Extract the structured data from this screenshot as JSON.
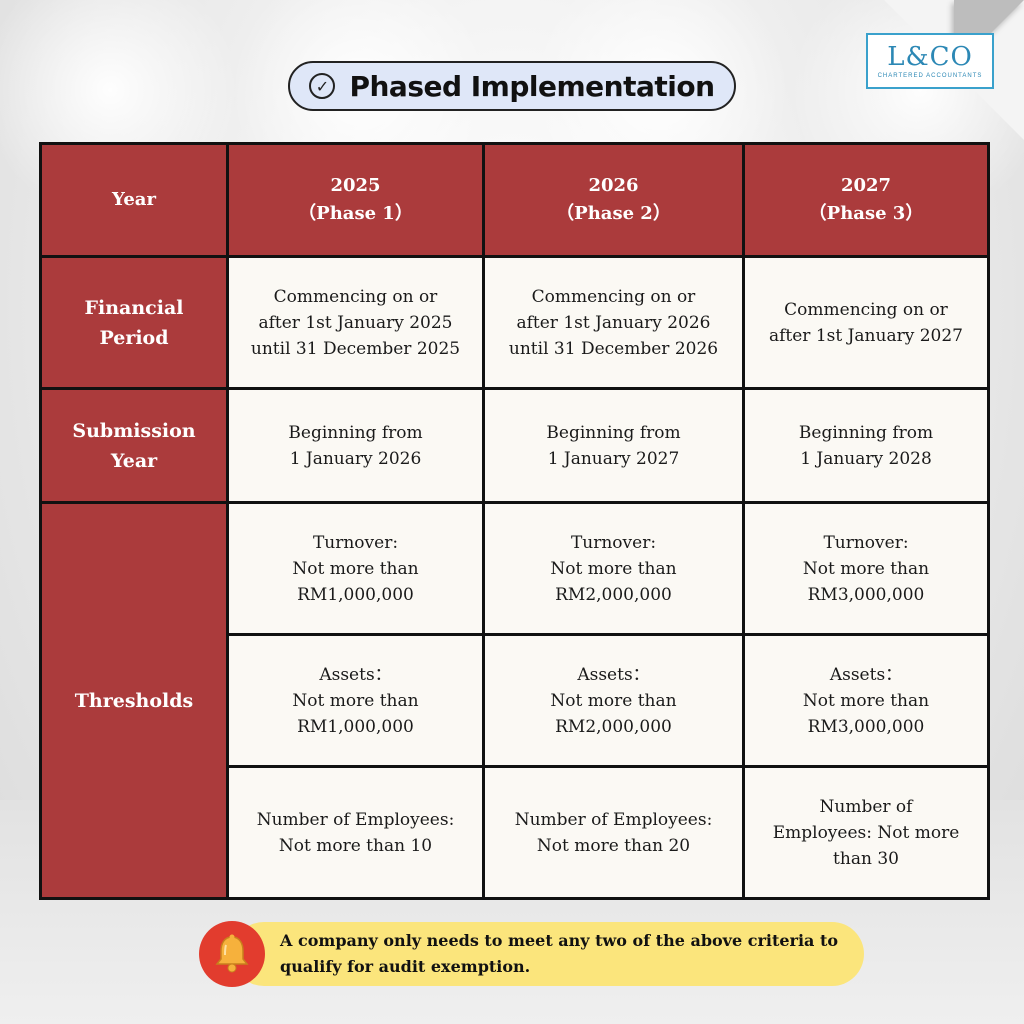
{
  "title": "Phased Implementation",
  "logo": {
    "mark": "L&CO",
    "subtitle": "CHARTERED ACCOUNTANTS"
  },
  "table": {
    "header": {
      "label": "Year",
      "columns": [
        {
          "year": "2025",
          "phase": "（Phase 1）"
        },
        {
          "year": "2026",
          "phase": "（Phase 2）"
        },
        {
          "year": "2027",
          "phase": "（Phase 3）"
        }
      ]
    },
    "financial_period": {
      "label": [
        "Financial",
        "Period"
      ],
      "cells": [
        [
          "Commencing on or",
          "after 1st January 2025",
          "until 31 December 2025"
        ],
        [
          "Commencing on or",
          "after 1st January 2026",
          "until 31 December 2026"
        ],
        [
          "Commencing on or",
          "after 1st January 2027"
        ]
      ]
    },
    "submission_year": {
      "label": [
        "Submission",
        "Year"
      ],
      "cells": [
        [
          "Beginning from",
          "1 January 2026"
        ],
        [
          "Beginning from",
          "1 January 2027"
        ],
        [
          "Beginning from",
          "1 January 2028"
        ]
      ]
    },
    "thresholds": {
      "label": "Thresholds",
      "turnover": [
        [
          "Turnover:",
          "Not more than",
          "RM1,000,000"
        ],
        [
          "Turnover:",
          "Not more than",
          "RM2,000,000"
        ],
        [
          "Turnover:",
          "Not more than",
          "RM3,000,000"
        ]
      ],
      "assets": [
        [
          "Assets：",
          "Not more than",
          "RM1,000,000"
        ],
        [
          "Assets：",
          "Not more than",
          "RM2,000,000"
        ],
        [
          "Assets：",
          "Not more than",
          "RM3,000,000"
        ]
      ],
      "employees": [
        [
          "Number of Employees:",
          "Not more than 10"
        ],
        [
          "Number of Employees:",
          "Not more than 20"
        ],
        [
          "Number of",
          "Employees: Not more",
          "than 30"
        ]
      ]
    }
  },
  "note": {
    "icon": "bell-icon",
    "text": [
      "A company only needs to meet any two of the above criteria to",
      "qualify for audit exemption."
    ]
  },
  "colors": {
    "header": "#ab3b3c",
    "cell": "#fbf9f4",
    "pill": "#dfe7f8",
    "note": "#fbe57c",
    "bell": "#e23c2e",
    "logo": "#2c88b5"
  }
}
